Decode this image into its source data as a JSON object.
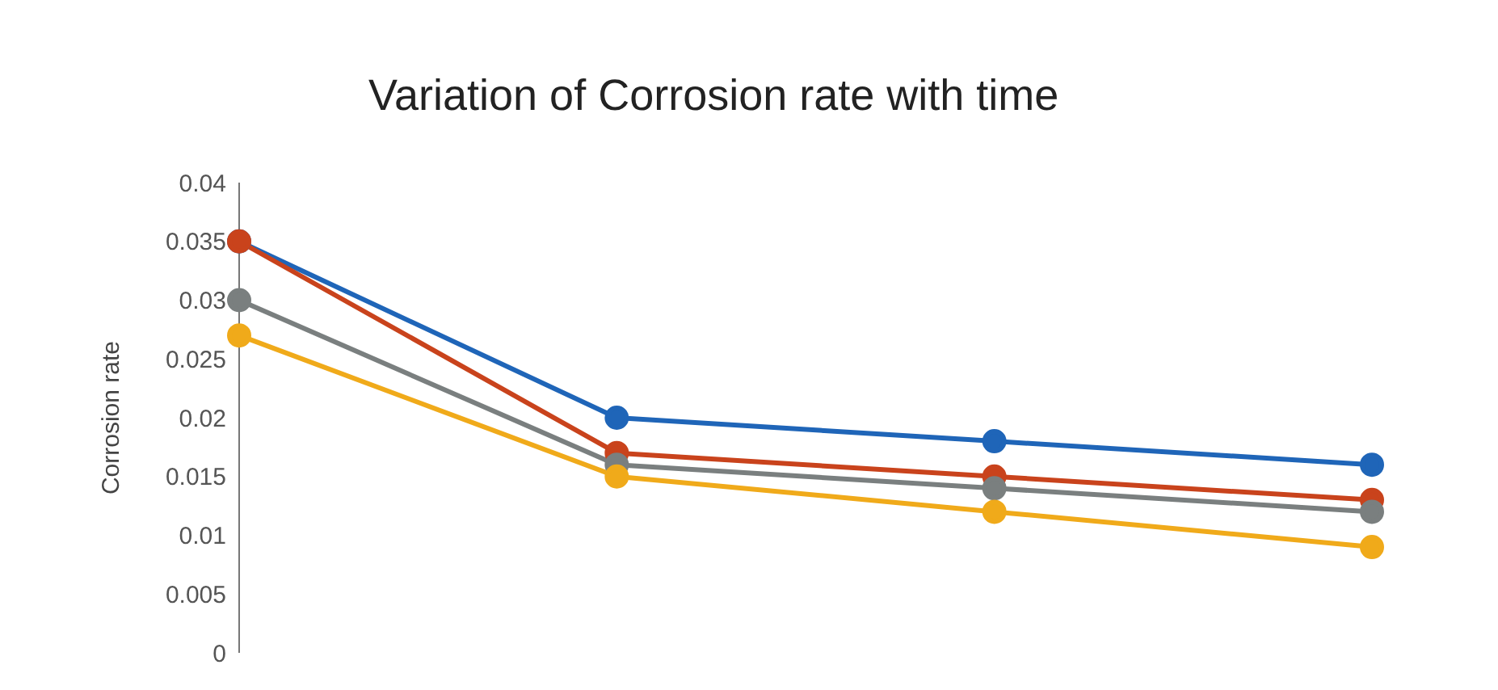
{
  "chart_data": {
    "type": "line",
    "title": "Variation of Corrosion rate with time",
    "ylabel": "Corrosion rate",
    "categories": [
      null,
      null,
      null,
      null
    ],
    "series": [
      {
        "color": "#1f65b8",
        "values": [
          0.035,
          0.02,
          0.018,
          0.016
        ]
      },
      {
        "color": "#c9431c",
        "values": [
          0.035,
          0.017,
          0.015,
          0.013
        ]
      },
      {
        "color": "#7a7f7f",
        "values": [
          0.03,
          0.016,
          0.014,
          0.012
        ]
      },
      {
        "color": "#f0aa1a",
        "values": [
          0.027,
          0.015,
          0.012,
          0.009
        ]
      }
    ],
    "ylim": [
      0,
      0.04
    ],
    "yticks": [
      0,
      0.005,
      0.01,
      0.015,
      0.02,
      0.025,
      0.03,
      0.035,
      0.04
    ],
    "grid": false,
    "legend": false,
    "marker": "circle",
    "line_style": "solid",
    "tick_labels": "y"
  }
}
